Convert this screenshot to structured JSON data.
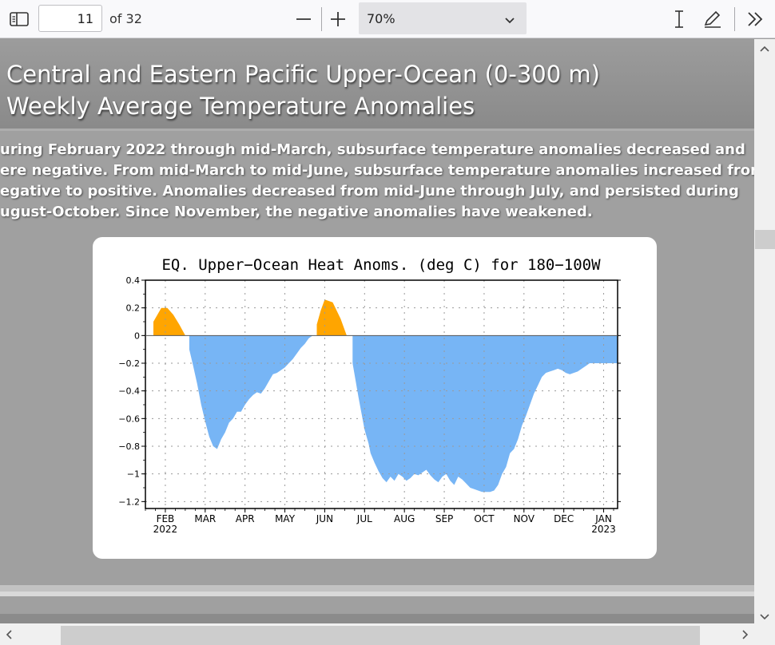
{
  "toolbar": {
    "page_number": "11",
    "page_count_label": "of 32",
    "zoom_value": "70%"
  },
  "document": {
    "title_lines": [
      "Central and Eastern Pacific Upper-Ocean (0-300 m)",
      "Weekly Average Temperature Anomalies"
    ],
    "paragraph_lines": [
      "uring February 2022 through mid-March, subsurface temperature anomalies decreased and",
      "ere negative.  From mid-March to mid-June, subsurface temperature anomalies increased from",
      "egative to positive.  Anomalies decreased from mid-June through July, and persisted during",
      "ugust-October. Since November, the negative anomalies have weakened."
    ]
  },
  "chart_data": {
    "type": "area",
    "title": "EQ. Upper−Ocean Heat Anoms. (deg C) for 180−100W",
    "ylim": [
      -1.25,
      0.4
    ],
    "yticks": [
      0.4,
      0.2,
      0,
      -0.2,
      -0.4,
      -0.6,
      -0.8,
      -1,
      -1.2
    ],
    "ytick_labels": [
      "0.4",
      "0.2",
      "0",
      "−0.2",
      "−0.4",
      "−0.6",
      "−0.8",
      "−1",
      "−1.2"
    ],
    "xlim": [
      -0.5,
      11.35
    ],
    "month_labels": [
      "FEB",
      "MAR",
      "APR",
      "MAY",
      "JUN",
      "JUL",
      "AUG",
      "SEP",
      "OCT",
      "NOV",
      "DEC",
      "JAN"
    ],
    "year_labels": [
      {
        "month_index": 0,
        "text": "2022"
      },
      {
        "month_index": 11,
        "text": "2023"
      }
    ],
    "grid": true,
    "positive_color": "#ffa500",
    "negative_color": "#77b5f5",
    "x": [
      -0.5,
      -0.3,
      -0.1,
      0.05,
      0.2,
      0.35,
      0.5,
      0.6,
      0.7,
      0.8,
      0.9,
      1.0,
      1.1,
      1.2,
      1.3,
      1.4,
      1.5,
      1.6,
      1.7,
      1.8,
      1.9,
      2.0,
      2.1,
      2.2,
      2.3,
      2.4,
      2.5,
      2.6,
      2.7,
      2.8,
      2.9,
      3.0,
      3.1,
      3.2,
      3.3,
      3.4,
      3.5,
      3.6,
      3.7,
      3.8,
      3.9,
      4.0,
      4.2,
      4.4,
      4.55,
      4.7,
      4.85,
      5.0,
      5.1,
      5.15,
      5.25,
      5.35,
      5.45,
      5.55,
      5.65,
      5.75,
      5.85,
      5.95,
      6.05,
      6.15,
      6.25,
      6.35,
      6.45,
      6.55,
      6.65,
      6.75,
      6.85,
      6.95,
      7.05,
      7.15,
      7.25,
      7.35,
      7.45,
      7.55,
      7.65,
      7.75,
      7.85,
      7.95,
      8.05,
      8.15,
      8.25,
      8.35,
      8.45,
      8.55,
      8.65,
      8.75,
      8.85,
      8.95,
      9.05,
      9.15,
      9.25,
      9.35,
      9.45,
      9.55,
      9.65,
      9.75,
      9.85,
      9.95,
      10.05,
      10.15,
      10.25,
      10.35,
      10.45,
      10.55,
      10.65,
      10.75,
      10.85,
      10.95,
      11.05,
      11.15,
      11.25,
      11.35
    ],
    "y": [
      0.0,
      0.1,
      0.2,
      0.2,
      0.15,
      0.08,
      0.0,
      -0.1,
      -0.22,
      -0.35,
      -0.5,
      -0.62,
      -0.73,
      -0.8,
      -0.82,
      -0.75,
      -0.7,
      -0.63,
      -0.6,
      -0.55,
      -0.55,
      -0.5,
      -0.46,
      -0.43,
      -0.41,
      -0.42,
      -0.38,
      -0.33,
      -0.28,
      -0.27,
      -0.25,
      -0.23,
      -0.2,
      -0.17,
      -0.13,
      -0.09,
      -0.06,
      -0.02,
      0.0,
      0.08,
      0.18,
      0.26,
      0.24,
      0.12,
      0.0,
      -0.2,
      -0.45,
      -0.68,
      -0.78,
      -0.85,
      -0.92,
      -0.98,
      -1.03,
      -1.06,
      -1.02,
      -1.05,
      -1.0,
      -1.02,
      -1.05,
      -1.03,
      -1.0,
      -1.01,
      -0.99,
      -0.97,
      -1.01,
      -1.04,
      -1.06,
      -1.02,
      -1.0,
      -1.05,
      -1.08,
      -1.02,
      -1.04,
      -1.07,
      -1.1,
      -1.11,
      -1.12,
      -1.13,
      -1.13,
      -1.13,
      -1.12,
      -1.08,
      -1.0,
      -0.95,
      -0.85,
      -0.82,
      -0.75,
      -0.65,
      -0.58,
      -0.5,
      -0.42,
      -0.36,
      -0.3,
      -0.27,
      -0.26,
      -0.25,
      -0.24,
      -0.25,
      -0.27,
      -0.28,
      -0.27,
      -0.26,
      -0.24,
      -0.22,
      -0.2,
      -0.2,
      -0.2,
      -0.2,
      -0.2,
      -0.2,
      -0.2,
      -0.2
    ]
  }
}
